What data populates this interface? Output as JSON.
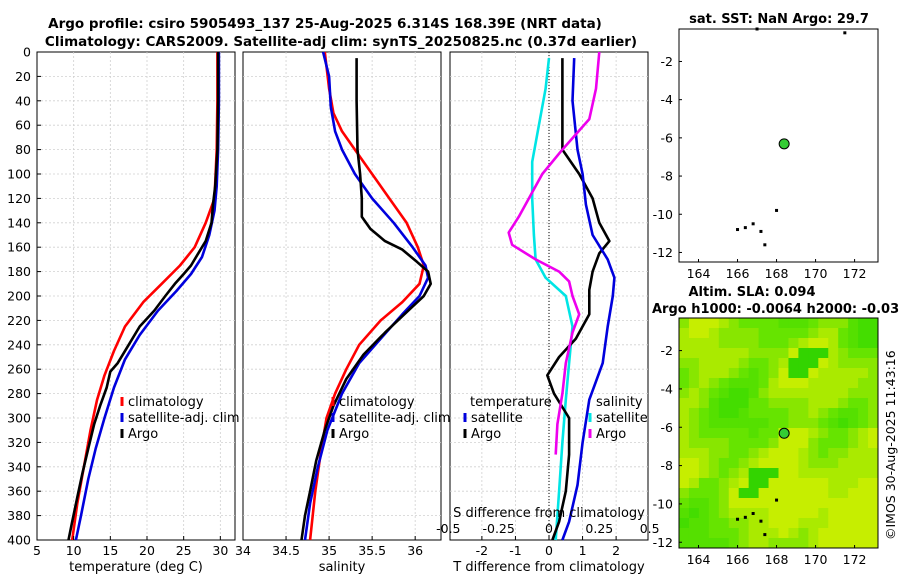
{
  "header": {
    "line1": "Argo profile: csiro 5905493_137 25-Aug-2025 6.314S 168.39E (NRT data)",
    "line2": "Climatology: CARS2009. Satellite-adj clim: synTS_20250825.nc (0.37d earlier)"
  },
  "colors": {
    "climatology": "#ff0000",
    "satellite": "#0000dd",
    "argo": "#000000",
    "t_diff_satellite": "#00e5e5",
    "s_diff_salinity": "#ee00ee",
    "sla_field": "#44dd00"
  },
  "depth_axis": {
    "ticks": [
      0,
      20,
      40,
      60,
      80,
      100,
      120,
      140,
      160,
      180,
      200,
      220,
      240,
      260,
      280,
      300,
      320,
      340,
      360,
      380,
      400
    ],
    "min": 0,
    "max": 400
  },
  "chart_data": [
    {
      "id": "temperature",
      "type": "line",
      "xlabel": "temperature (deg C)",
      "xlim": [
        5,
        32
      ],
      "xticks": [
        5,
        10,
        15,
        20,
        25,
        30
      ],
      "legend": [
        "climatology",
        "satellite-adj. clim",
        "Argo"
      ],
      "series": [
        {
          "name": "climatology",
          "color": "#ff0000",
          "points": [
            [
              29.6,
              0
            ],
            [
              29.6,
              40
            ],
            [
              29.5,
              80
            ],
            [
              29.2,
              120
            ],
            [
              28.0,
              140
            ],
            [
              26.5,
              160
            ],
            [
              24.5,
              175
            ],
            [
              22.0,
              190
            ],
            [
              19.5,
              205
            ],
            [
              17.0,
              225
            ],
            [
              15.5,
              245
            ],
            [
              14.2,
              265
            ],
            [
              13.2,
              285
            ],
            [
              12.3,
              310
            ],
            [
              11.4,
              340
            ],
            [
              10.5,
              370
            ],
            [
              9.8,
              400
            ]
          ]
        },
        {
          "name": "satellite-adj. clim",
          "color": "#0000dd",
          "points": [
            [
              29.8,
              0
            ],
            [
              29.8,
              40
            ],
            [
              29.7,
              80
            ],
            [
              29.5,
              110
            ],
            [
              29.2,
              130
            ],
            [
              28.5,
              150
            ],
            [
              27.5,
              168
            ],
            [
              26.0,
              182
            ],
            [
              24.0,
              196
            ],
            [
              21.5,
              212
            ],
            [
              19.0,
              232
            ],
            [
              17.0,
              252
            ],
            [
              15.5,
              275
            ],
            [
              14.2,
              300
            ],
            [
              13.0,
              325
            ],
            [
              12.0,
              350
            ],
            [
              11.0,
              380
            ],
            [
              10.3,
              400
            ]
          ]
        },
        {
          "name": "Argo",
          "color": "#000000",
          "points": [
            [
              29.7,
              0
            ],
            [
              29.7,
              40
            ],
            [
              29.6,
              80
            ],
            [
              29.3,
              110
            ],
            [
              29.0,
              125
            ],
            [
              28.8,
              140
            ],
            [
              28.0,
              155
            ],
            [
              27.0,
              165
            ],
            [
              26.0,
              175
            ],
            [
              25.0,
              182
            ],
            [
              23.8,
              190
            ],
            [
              22.5,
              200
            ],
            [
              21.0,
              212
            ],
            [
              19.0,
              225
            ],
            [
              17.5,
              240
            ],
            [
              16.0,
              255
            ],
            [
              15.0,
              262
            ],
            [
              14.5,
              275
            ],
            [
              13.6,
              290
            ],
            [
              12.8,
              305
            ],
            [
              12.0,
              325
            ],
            [
              11.2,
              345
            ],
            [
              10.5,
              365
            ],
            [
              9.8,
              385
            ],
            [
              9.3,
              400
            ]
          ]
        }
      ]
    },
    {
      "id": "salinity",
      "type": "line",
      "xlabel": "salinity",
      "xlim": [
        34,
        36.3
      ],
      "xticks": [
        34,
        34.5,
        35,
        35.5,
        36
      ],
      "legend": [
        "climatology",
        "satellite-adj. clim",
        "Argo"
      ],
      "series": [
        {
          "name": "climatology",
          "color": "#ff0000",
          "points": [
            [
              34.95,
              0
            ],
            [
              35.0,
              30
            ],
            [
              35.05,
              50
            ],
            [
              35.15,
              65
            ],
            [
              35.3,
              80
            ],
            [
              35.5,
              100
            ],
            [
              35.7,
              120
            ],
            [
              35.9,
              140
            ],
            [
              36.03,
              160
            ],
            [
              36.1,
              175
            ],
            [
              36.05,
              190
            ],
            [
              35.85,
              205
            ],
            [
              35.6,
              220
            ],
            [
              35.35,
              240
            ],
            [
              35.2,
              260
            ],
            [
              35.07,
              280
            ],
            [
              34.97,
              300
            ],
            [
              34.9,
              330
            ],
            [
              34.84,
              360
            ],
            [
              34.78,
              400
            ]
          ]
        },
        {
          "name": "satellite-adj. clim",
          "color": "#0000dd",
          "points": [
            [
              34.93,
              0
            ],
            [
              35.0,
              20
            ],
            [
              35.02,
              45
            ],
            [
              35.07,
              65
            ],
            [
              35.15,
              80
            ],
            [
              35.3,
              100
            ],
            [
              35.5,
              120
            ],
            [
              35.75,
              140
            ],
            [
              35.97,
              160
            ],
            [
              36.12,
              175
            ],
            [
              36.15,
              185
            ],
            [
              36.05,
              200
            ],
            [
              35.85,
              215
            ],
            [
              35.6,
              235
            ],
            [
              35.35,
              255
            ],
            [
              35.15,
              280
            ],
            [
              34.98,
              310
            ],
            [
              34.87,
              340
            ],
            [
              34.78,
              370
            ],
            [
              34.72,
              400
            ]
          ]
        },
        {
          "name": "Argo",
          "color": "#000000",
          "points": [
            [
              35.32,
              5
            ],
            [
              35.32,
              40
            ],
            [
              35.33,
              80
            ],
            [
              35.36,
              100
            ],
            [
              35.38,
              120
            ],
            [
              35.38,
              135
            ],
            [
              35.48,
              145
            ],
            [
              35.65,
              155
            ],
            [
              35.85,
              162
            ],
            [
              36.02,
              172
            ],
            [
              36.15,
              180
            ],
            [
              36.18,
              190
            ],
            [
              36.1,
              200
            ],
            [
              35.92,
              212
            ],
            [
              35.65,
              230
            ],
            [
              35.4,
              248
            ],
            [
              35.2,
              268
            ],
            [
              35.05,
              290
            ],
            [
              34.95,
              310
            ],
            [
              34.85,
              335
            ],
            [
              34.78,
              360
            ],
            [
              34.72,
              380
            ],
            [
              34.68,
              400
            ]
          ]
        }
      ]
    },
    {
      "id": "differences",
      "type": "line",
      "xlabel": "T difference from climatology",
      "xlim": [
        -2.95,
        2.95
      ],
      "xticks": [
        -2,
        -1,
        0,
        1,
        2
      ],
      "top_label": "S difference from climatology",
      "s_ticks": [
        "-0.5",
        "-0.25",
        "0",
        "0.25",
        "0.5"
      ],
      "s_scale_per_unit": 6,
      "legend_left_title": "temperature",
      "legend_left": [
        "satellite",
        "Argo"
      ],
      "legend_right_title": "salinity",
      "legend_right": [
        "satellite",
        "Argo"
      ],
      "series": [
        {
          "name": "T satellite",
          "color": "#00e5e5",
          "points": [
            [
              0,
              5
            ],
            [
              -0.1,
              30
            ],
            [
              -0.3,
              60
            ],
            [
              -0.5,
              90
            ],
            [
              -0.5,
              120
            ],
            [
              -0.45,
              150
            ],
            [
              -0.4,
              170
            ],
            [
              -0.1,
              185
            ],
            [
              0.5,
              200
            ],
            [
              0.7,
              225
            ],
            [
              0.6,
              255
            ],
            [
              0.5,
              285
            ],
            [
              0.4,
              320
            ],
            [
              0.3,
              360
            ],
            [
              0.2,
              400
            ]
          ]
        },
        {
          "name": "T Argo",
          "color": "#000000",
          "points": [
            [
              0.4,
              5
            ],
            [
              0.4,
              40
            ],
            [
              0.4,
              80
            ],
            [
              0.9,
              100
            ],
            [
              1.3,
              120
            ],
            [
              1.5,
              140
            ],
            [
              1.8,
              155
            ],
            [
              1.5,
              165
            ],
            [
              1.3,
              180
            ],
            [
              1.2,
              195
            ],
            [
              1.2,
              215
            ],
            [
              0.8,
              235
            ],
            [
              0.3,
              250
            ],
            [
              -0.05,
              265
            ],
            [
              0.15,
              280
            ],
            [
              0.6,
              300
            ],
            [
              0.6,
              330
            ],
            [
              0.5,
              360
            ],
            [
              0.3,
              385
            ],
            [
              0.1,
              400
            ]
          ]
        },
        {
          "name": "S satellite",
          "color": "#0000dd",
          "points": [
            [
              0.75,
              5
            ],
            [
              0.7,
              40
            ],
            [
              0.85,
              80
            ],
            [
              1.0,
              100
            ],
            [
              1.1,
              125
            ],
            [
              1.3,
              150
            ],
            [
              1.75,
              170
            ],
            [
              1.95,
              185
            ],
            [
              1.9,
              200
            ],
            [
              1.75,
              225
            ],
            [
              1.6,
              255
            ],
            [
              1.2,
              285
            ],
            [
              1.0,
              320
            ],
            [
              0.85,
              355
            ],
            [
              0.6,
              385
            ],
            [
              0.4,
              400
            ]
          ]
        },
        {
          "name": "S Argo",
          "color": "#ee00ee",
          "points": [
            [
              1.5,
              0
            ],
            [
              1.4,
              30
            ],
            [
              1.2,
              55
            ],
            [
              0.4,
              80
            ],
            [
              -0.2,
              100
            ],
            [
              -0.6,
              120
            ],
            [
              -0.9,
              135
            ],
            [
              -1.2,
              148
            ],
            [
              -1.1,
              158
            ],
            [
              -0.4,
              170
            ],
            [
              0.3,
              180
            ],
            [
              0.6,
              188
            ],
            [
              0.7,
              200
            ],
            [
              0.9,
              215
            ],
            [
              0.7,
              230
            ],
            [
              0.5,
              255
            ],
            [
              0.4,
              280
            ],
            [
              0.25,
              305
            ],
            [
              0.2,
              330
            ]
          ]
        }
      ]
    },
    {
      "id": "sst_map",
      "type": "scatter",
      "title": "sat. SST: NaN Argo: 29.7",
      "xlim": [
        163,
        173.2
      ],
      "ylim": [
        -12.5,
        -0.3
      ],
      "xticks": [
        164,
        166,
        168,
        170,
        172
      ],
      "yticks": [
        -2,
        -4,
        -6,
        -8,
        -10,
        -12
      ],
      "argo_position": {
        "lon": 168.39,
        "lat": -6.314
      },
      "islands": [
        [
          166.4,
          -10.7
        ],
        [
          166.8,
          -10.5
        ],
        [
          167.2,
          -10.9
        ],
        [
          167.4,
          -11.6
        ],
        [
          168.0,
          -9.8
        ],
        [
          166.0,
          -10.8
        ],
        [
          171.5,
          -0.5
        ],
        [
          167.0,
          -0.3
        ]
      ]
    },
    {
      "id": "sla_map",
      "type": "heatmap",
      "title": "Altim. SLA: 0.094",
      "subtitle": "Argo h1000: -0.0064 h2000: -0.03",
      "xlim": [
        163,
        173.2
      ],
      "ylim": [
        -12.3,
        -0.3
      ],
      "xticks": [
        164,
        166,
        168,
        170,
        172
      ],
      "yticks": [
        -2,
        -4,
        -6,
        -8,
        -10,
        -12
      ],
      "argo_position": {
        "lon": 168.39,
        "lat": -6.314
      },
      "field_note": "bright green field with yellow-green patches",
      "islands": [
        [
          166.4,
          -10.7
        ],
        [
          166.8,
          -10.5
        ],
        [
          167.2,
          -10.9
        ],
        [
          167.4,
          -11.6
        ],
        [
          168.0,
          -9.8
        ],
        [
          166.0,
          -10.8
        ]
      ]
    }
  ],
  "side_stamp": "©IMOS 30-Aug-2025 11:43:16"
}
